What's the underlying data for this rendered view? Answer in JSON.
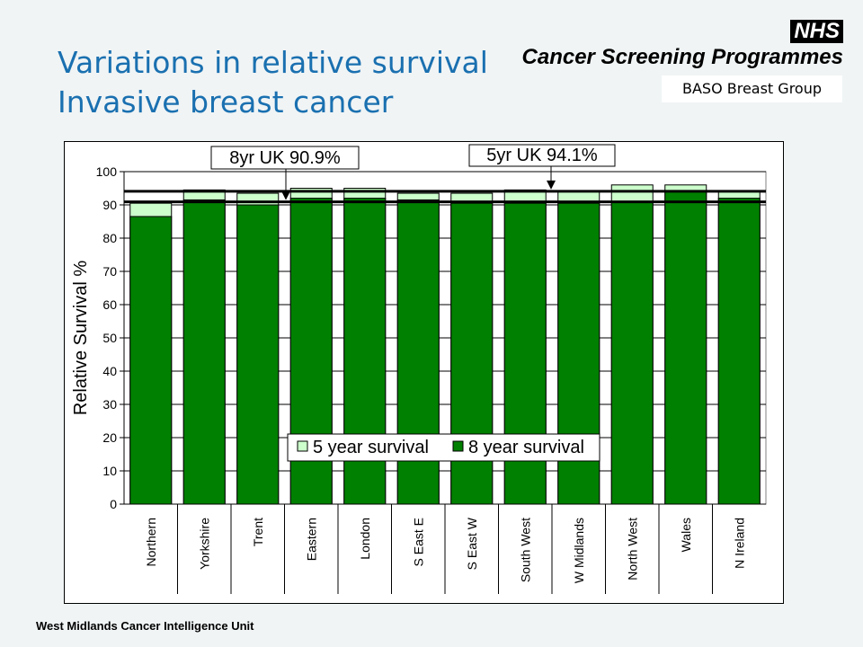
{
  "slide": {
    "title_line1": "Variations in relative survival",
    "title_line2": "Invasive breast cancer",
    "logo_mark": "NHS",
    "logo_programme": "Cancer Screening Programmes",
    "group_label": "BASO Breast Group",
    "footer": "West Midlands Cancer Intelligence Unit"
  },
  "colors": {
    "title": "#1a70b0",
    "five_year": "#ccffcc",
    "eight_year": "#008000",
    "background": "#f0f4f5"
  },
  "chart_data": {
    "type": "bar",
    "title": "",
    "xlabel": "",
    "ylabel": "Relative Survival %",
    "ylim": [
      0,
      100
    ],
    "yticks": [
      0,
      10,
      20,
      30,
      40,
      50,
      60,
      70,
      80,
      90,
      100
    ],
    "grid": true,
    "legend_position": "bottom-center",
    "categories": [
      "Northern",
      "Yorkshire",
      "Trent",
      "Eastern",
      "London",
      "S East E",
      "S East W",
      "South West",
      "W Midlands",
      "North West",
      "Wales",
      "N Ireland"
    ],
    "series": [
      {
        "name": "5 year survival",
        "values": [
          90.5,
          94.5,
          93.5,
          95,
          95,
          93.5,
          93.5,
          94.5,
          94,
          96,
          96,
          94
        ]
      },
      {
        "name": "8 year survival",
        "values": [
          86.5,
          91.5,
          90,
          92,
          92,
          91.5,
          90.5,
          90.5,
          90.5,
          91,
          94,
          92
        ]
      }
    ],
    "reference_lines": [
      {
        "label": "8yr UK 90.9%",
        "value": 90.9
      },
      {
        "label": "5yr UK 94.1%",
        "value": 94.1
      }
    ]
  }
}
